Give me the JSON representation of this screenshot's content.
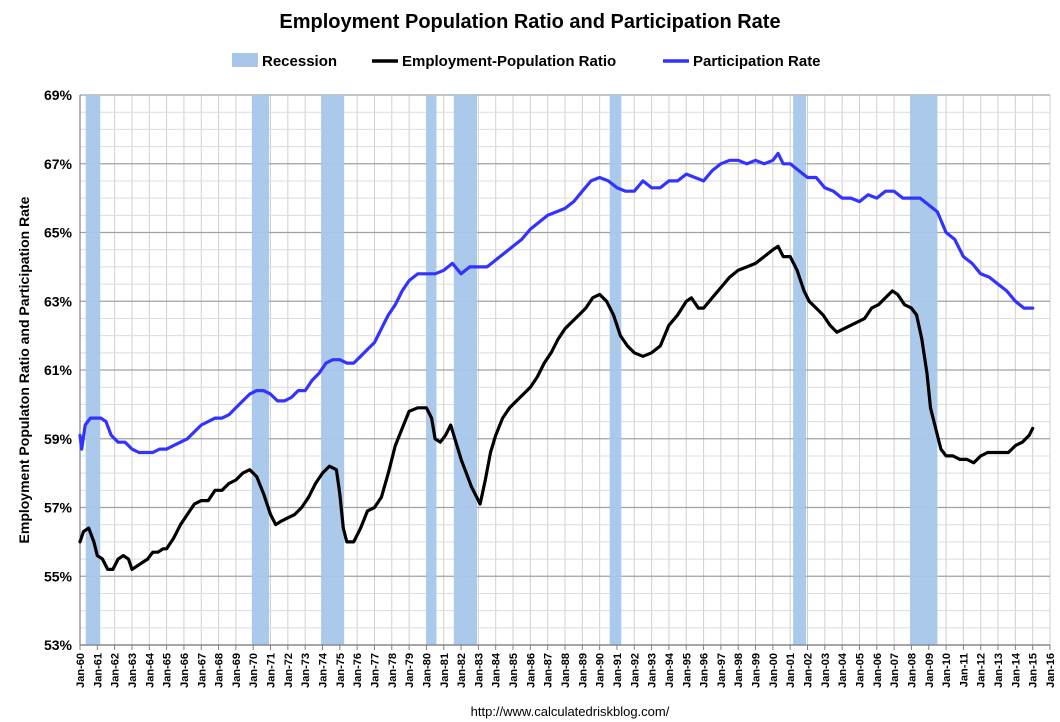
{
  "chart_data": {
    "type": "line",
    "title": "Employment Population Ratio and Participation Rate",
    "ylabel": "Employment Populaton Ratio and Participation Rate",
    "xlabel": "",
    "source": "http://www.calculatedriskblog.com/",
    "ylim": [
      53,
      69
    ],
    "y_ticks": [
      "53%",
      "55%",
      "57%",
      "59%",
      "61%",
      "63%",
      "65%",
      "67%",
      "69%"
    ],
    "x_range": [
      1960.0,
      2016.0
    ],
    "x_ticks": [
      "Jan-60",
      "Jan-61",
      "Jan-62",
      "Jan-63",
      "Jan-64",
      "Jan-65",
      "Jan-66",
      "Jan-67",
      "Jan-68",
      "Jan-69",
      "Jan-70",
      "Jan-71",
      "Jan-72",
      "Jan-73",
      "Jan-74",
      "Jan-75",
      "Jan-76",
      "Jan-77",
      "Jan-78",
      "Jan-79",
      "Jan-80",
      "Jan-81",
      "Jan-82",
      "Jan-83",
      "Jan-84",
      "Jan-85",
      "Jan-86",
      "Jan-87",
      "Jan-88",
      "Jan-89",
      "Jan-90",
      "Jan-91",
      "Jan-92",
      "Jan-93",
      "Jan-94",
      "Jan-95",
      "Jan-96",
      "Jan-97",
      "Jan-98",
      "Jan-99",
      "Jan-00",
      "Jan-01",
      "Jan-02",
      "Jan-03",
      "Jan-04",
      "Jan-05",
      "Jan-06",
      "Jan-07",
      "Jan-08",
      "Jan-09",
      "Jan-10",
      "Jan-11",
      "Jan-12",
      "Jan-13",
      "Jan-14",
      "Jan-15",
      "Jan-16"
    ],
    "grid": true,
    "legend_position": "top",
    "legend": [
      {
        "name": "Recession",
        "kind": "band",
        "color": "#a7c6ea"
      },
      {
        "name": "Employment-Population Ratio",
        "kind": "line",
        "color": "#000000"
      },
      {
        "name": "Participation Rate",
        "kind": "line",
        "color": "#3333ff"
      }
    ],
    "recessions": [
      [
        1960.33,
        1961.17
      ],
      [
        1969.92,
        1970.92
      ],
      [
        1973.92,
        1975.25
      ],
      [
        1980.0,
        1980.58
      ],
      [
        1981.58,
        1982.92
      ],
      [
        1990.58,
        1991.25
      ],
      [
        2001.17,
        2001.92
      ],
      [
        2007.92,
        2009.5
      ]
    ],
    "series": [
      {
        "name": "Employment-Population Ratio",
        "color": "#000000",
        "points": [
          [
            1960.0,
            56.0
          ],
          [
            1960.2,
            56.3
          ],
          [
            1960.5,
            56.4
          ],
          [
            1960.8,
            56.0
          ],
          [
            1961.0,
            55.6
          ],
          [
            1961.3,
            55.5
          ],
          [
            1961.6,
            55.2
          ],
          [
            1961.9,
            55.2
          ],
          [
            1962.2,
            55.5
          ],
          [
            1962.5,
            55.6
          ],
          [
            1962.8,
            55.5
          ],
          [
            1963.0,
            55.2
          ],
          [
            1963.3,
            55.3
          ],
          [
            1963.6,
            55.4
          ],
          [
            1963.9,
            55.5
          ],
          [
            1964.2,
            55.7
          ],
          [
            1964.5,
            55.7
          ],
          [
            1964.8,
            55.8
          ],
          [
            1965.0,
            55.8
          ],
          [
            1965.4,
            56.1
          ],
          [
            1965.8,
            56.5
          ],
          [
            1966.2,
            56.8
          ],
          [
            1966.6,
            57.1
          ],
          [
            1967.0,
            57.2
          ],
          [
            1967.4,
            57.2
          ],
          [
            1967.8,
            57.5
          ],
          [
            1968.2,
            57.5
          ],
          [
            1968.6,
            57.7
          ],
          [
            1969.0,
            57.8
          ],
          [
            1969.4,
            58.0
          ],
          [
            1969.8,
            58.1
          ],
          [
            1970.2,
            57.9
          ],
          [
            1970.6,
            57.4
          ],
          [
            1971.0,
            56.8
          ],
          [
            1971.3,
            56.5
          ],
          [
            1971.6,
            56.6
          ],
          [
            1972.0,
            56.7
          ],
          [
            1972.4,
            56.8
          ],
          [
            1972.8,
            57.0
          ],
          [
            1973.2,
            57.3
          ],
          [
            1973.6,
            57.7
          ],
          [
            1974.0,
            58.0
          ],
          [
            1974.4,
            58.2
          ],
          [
            1974.8,
            58.1
          ],
          [
            1975.0,
            57.4
          ],
          [
            1975.2,
            56.4
          ],
          [
            1975.4,
            56.0
          ],
          [
            1975.8,
            56.0
          ],
          [
            1976.2,
            56.4
          ],
          [
            1976.6,
            56.9
          ],
          [
            1977.0,
            57.0
          ],
          [
            1977.4,
            57.3
          ],
          [
            1977.8,
            58.0
          ],
          [
            1978.2,
            58.8
          ],
          [
            1978.6,
            59.3
          ],
          [
            1979.0,
            59.8
          ],
          [
            1979.5,
            59.9
          ],
          [
            1980.0,
            59.9
          ],
          [
            1980.3,
            59.6
          ],
          [
            1980.5,
            59.0
          ],
          [
            1980.8,
            58.9
          ],
          [
            1981.1,
            59.1
          ],
          [
            1981.4,
            59.4
          ],
          [
            1981.7,
            58.9
          ],
          [
            1982.0,
            58.4
          ],
          [
            1982.3,
            58.0
          ],
          [
            1982.6,
            57.6
          ],
          [
            1982.9,
            57.3
          ],
          [
            1983.1,
            57.1
          ],
          [
            1983.4,
            57.8
          ],
          [
            1983.7,
            58.6
          ],
          [
            1984.0,
            59.1
          ],
          [
            1984.4,
            59.6
          ],
          [
            1984.8,
            59.9
          ],
          [
            1985.2,
            60.1
          ],
          [
            1985.6,
            60.3
          ],
          [
            1986.0,
            60.5
          ],
          [
            1986.4,
            60.8
          ],
          [
            1986.8,
            61.2
          ],
          [
            1987.2,
            61.5
          ],
          [
            1987.6,
            61.9
          ],
          [
            1988.0,
            62.2
          ],
          [
            1988.4,
            62.4
          ],
          [
            1988.8,
            62.6
          ],
          [
            1989.2,
            62.8
          ],
          [
            1989.6,
            63.1
          ],
          [
            1990.0,
            63.2
          ],
          [
            1990.4,
            63.0
          ],
          [
            1990.8,
            62.6
          ],
          [
            1991.2,
            62.0
          ],
          [
            1991.6,
            61.7
          ],
          [
            1992.0,
            61.5
          ],
          [
            1992.5,
            61.4
          ],
          [
            1993.0,
            61.5
          ],
          [
            1993.5,
            61.7
          ],
          [
            1994.0,
            62.3
          ],
          [
            1994.5,
            62.6
          ],
          [
            1995.0,
            63.0
          ],
          [
            1995.3,
            63.1
          ],
          [
            1995.7,
            62.8
          ],
          [
            1996.0,
            62.8
          ],
          [
            1996.5,
            63.1
          ],
          [
            1997.0,
            63.4
          ],
          [
            1997.5,
            63.7
          ],
          [
            1998.0,
            63.9
          ],
          [
            1998.5,
            64.0
          ],
          [
            1999.0,
            64.1
          ],
          [
            1999.5,
            64.3
          ],
          [
            2000.0,
            64.5
          ],
          [
            2000.3,
            64.6
          ],
          [
            2000.6,
            64.3
          ],
          [
            2001.0,
            64.3
          ],
          [
            2001.4,
            63.9
          ],
          [
            2001.8,
            63.3
          ],
          [
            2002.1,
            63.0
          ],
          [
            2002.5,
            62.8
          ],
          [
            2002.9,
            62.6
          ],
          [
            2003.3,
            62.3
          ],
          [
            2003.7,
            62.1
          ],
          [
            2004.1,
            62.2
          ],
          [
            2004.5,
            62.3
          ],
          [
            2004.9,
            62.4
          ],
          [
            2005.3,
            62.5
          ],
          [
            2005.7,
            62.8
          ],
          [
            2006.1,
            62.9
          ],
          [
            2006.5,
            63.1
          ],
          [
            2006.9,
            63.3
          ],
          [
            2007.2,
            63.2
          ],
          [
            2007.6,
            62.9
          ],
          [
            2008.0,
            62.8
          ],
          [
            2008.3,
            62.6
          ],
          [
            2008.6,
            61.9
          ],
          [
            2008.9,
            60.9
          ],
          [
            2009.1,
            59.9
          ],
          [
            2009.4,
            59.3
          ],
          [
            2009.7,
            58.7
          ],
          [
            2010.0,
            58.5
          ],
          [
            2010.4,
            58.5
          ],
          [
            2010.8,
            58.4
          ],
          [
            2011.2,
            58.4
          ],
          [
            2011.6,
            58.3
          ],
          [
            2012.0,
            58.5
          ],
          [
            2012.4,
            58.6
          ],
          [
            2012.8,
            58.6
          ],
          [
            2013.2,
            58.6
          ],
          [
            2013.6,
            58.6
          ],
          [
            2014.0,
            58.8
          ],
          [
            2014.4,
            58.9
          ],
          [
            2014.8,
            59.1
          ],
          [
            2015.0,
            59.3
          ]
        ]
      },
      {
        "name": "Participation Rate",
        "color": "#3333ff",
        "points": [
          [
            1960.0,
            59.1
          ],
          [
            1960.1,
            58.7
          ],
          [
            1960.3,
            59.4
          ],
          [
            1960.6,
            59.6
          ],
          [
            1960.9,
            59.6
          ],
          [
            1961.2,
            59.6
          ],
          [
            1961.5,
            59.5
          ],
          [
            1961.8,
            59.1
          ],
          [
            1962.2,
            58.9
          ],
          [
            1962.6,
            58.9
          ],
          [
            1963.0,
            58.7
          ],
          [
            1963.4,
            58.6
          ],
          [
            1963.8,
            58.6
          ],
          [
            1964.2,
            58.6
          ],
          [
            1964.6,
            58.7
          ],
          [
            1965.0,
            58.7
          ],
          [
            1965.4,
            58.8
          ],
          [
            1965.8,
            58.9
          ],
          [
            1966.2,
            59.0
          ],
          [
            1966.6,
            59.2
          ],
          [
            1967.0,
            59.4
          ],
          [
            1967.4,
            59.5
          ],
          [
            1967.8,
            59.6
          ],
          [
            1968.2,
            59.6
          ],
          [
            1968.6,
            59.7
          ],
          [
            1969.0,
            59.9
          ],
          [
            1969.4,
            60.1
          ],
          [
            1969.8,
            60.3
          ],
          [
            1970.2,
            60.4
          ],
          [
            1970.6,
            60.4
          ],
          [
            1971.0,
            60.3
          ],
          [
            1971.4,
            60.1
          ],
          [
            1971.8,
            60.1
          ],
          [
            1972.2,
            60.2
          ],
          [
            1972.6,
            60.4
          ],
          [
            1973.0,
            60.4
          ],
          [
            1973.4,
            60.7
          ],
          [
            1973.8,
            60.9
          ],
          [
            1974.2,
            61.2
          ],
          [
            1974.6,
            61.3
          ],
          [
            1975.0,
            61.3
          ],
          [
            1975.4,
            61.2
          ],
          [
            1975.8,
            61.2
          ],
          [
            1976.2,
            61.4
          ],
          [
            1976.6,
            61.6
          ],
          [
            1977.0,
            61.8
          ],
          [
            1977.4,
            62.2
          ],
          [
            1977.8,
            62.6
          ],
          [
            1978.2,
            62.9
          ],
          [
            1978.6,
            63.3
          ],
          [
            1979.0,
            63.6
          ],
          [
            1979.5,
            63.8
          ],
          [
            1980.0,
            63.8
          ],
          [
            1980.5,
            63.8
          ],
          [
            1981.0,
            63.9
          ],
          [
            1981.5,
            64.1
          ],
          [
            1982.0,
            63.8
          ],
          [
            1982.5,
            64.0
          ],
          [
            1983.0,
            64.0
          ],
          [
            1983.5,
            64.0
          ],
          [
            1984.0,
            64.2
          ],
          [
            1984.5,
            64.4
          ],
          [
            1985.0,
            64.6
          ],
          [
            1985.5,
            64.8
          ],
          [
            1986.0,
            65.1
          ],
          [
            1986.5,
            65.3
          ],
          [
            1987.0,
            65.5
          ],
          [
            1987.5,
            65.6
          ],
          [
            1988.0,
            65.7
          ],
          [
            1988.5,
            65.9
          ],
          [
            1989.0,
            66.2
          ],
          [
            1989.5,
            66.5
          ],
          [
            1990.0,
            66.6
          ],
          [
            1990.5,
            66.5
          ],
          [
            1991.0,
            66.3
          ],
          [
            1991.5,
            66.2
          ],
          [
            1992.0,
            66.2
          ],
          [
            1992.5,
            66.5
          ],
          [
            1993.0,
            66.3
          ],
          [
            1993.5,
            66.3
          ],
          [
            1994.0,
            66.5
          ],
          [
            1994.5,
            66.5
          ],
          [
            1995.0,
            66.7
          ],
          [
            1995.5,
            66.6
          ],
          [
            1996.0,
            66.5
          ],
          [
            1996.5,
            66.8
          ],
          [
            1997.0,
            67.0
          ],
          [
            1997.5,
            67.1
          ],
          [
            1998.0,
            67.1
          ],
          [
            1998.5,
            67.0
          ],
          [
            1999.0,
            67.1
          ],
          [
            1999.5,
            67.0
          ],
          [
            2000.0,
            67.1
          ],
          [
            2000.3,
            67.3
          ],
          [
            2000.6,
            67.0
          ],
          [
            2001.0,
            67.0
          ],
          [
            2001.5,
            66.8
          ],
          [
            2002.0,
            66.6
          ],
          [
            2002.5,
            66.6
          ],
          [
            2003.0,
            66.3
          ],
          [
            2003.5,
            66.2
          ],
          [
            2004.0,
            66.0
          ],
          [
            2004.5,
            66.0
          ],
          [
            2005.0,
            65.9
          ],
          [
            2005.5,
            66.1
          ],
          [
            2006.0,
            66.0
          ],
          [
            2006.5,
            66.2
          ],
          [
            2007.0,
            66.2
          ],
          [
            2007.5,
            66.0
          ],
          [
            2008.0,
            66.0
          ],
          [
            2008.5,
            66.0
          ],
          [
            2009.0,
            65.8
          ],
          [
            2009.5,
            65.6
          ],
          [
            2010.0,
            65.0
          ],
          [
            2010.5,
            64.8
          ],
          [
            2011.0,
            64.3
          ],
          [
            2011.5,
            64.1
          ],
          [
            2012.0,
            63.8
          ],
          [
            2012.5,
            63.7
          ],
          [
            2013.0,
            63.5
          ],
          [
            2013.5,
            63.3
          ],
          [
            2014.0,
            63.0
          ],
          [
            2014.5,
            62.8
          ],
          [
            2015.0,
            62.8
          ]
        ]
      }
    ]
  }
}
